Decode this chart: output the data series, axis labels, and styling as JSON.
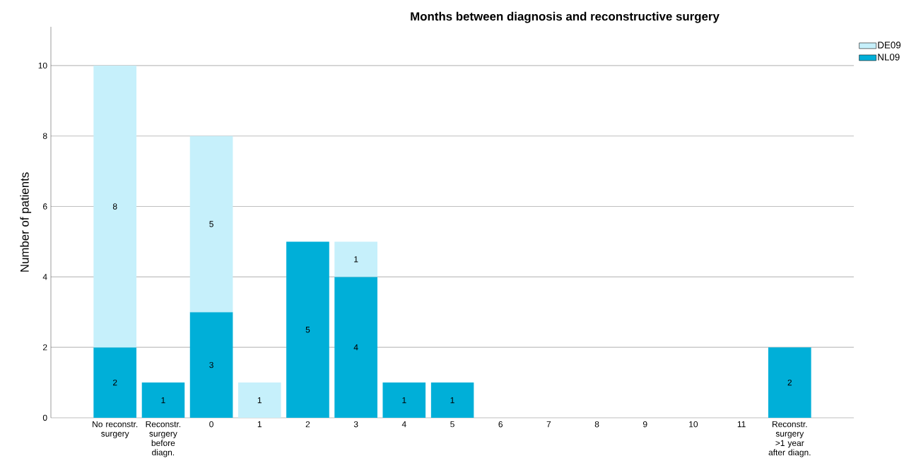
{
  "chart_data": {
    "type": "bar",
    "title": "Months between diagnosis and reconstructive surgery",
    "ylabel": "Number of patients",
    "categories": [
      "No reconstr. surgery",
      "Reconstr. surgery before diagn.",
      "0",
      "1",
      "2",
      "3",
      "4",
      "5",
      "6",
      "7",
      "8",
      "9",
      "10",
      "11",
      "Reconstr. surgery >1 year after diagn."
    ],
    "series": [
      {
        "name": "NL09",
        "color": "#00afd8",
        "values": [
          2,
          1,
          3,
          null,
          5,
          4,
          1,
          1,
          null,
          null,
          null,
          null,
          null,
          null,
          2
        ]
      },
      {
        "name": "DE09",
        "color": "#c6f0fb",
        "values": [
          8,
          null,
          5,
          1,
          null,
          1,
          null,
          null,
          null,
          null,
          null,
          null,
          null,
          null,
          null
        ]
      }
    ],
    "stacked": true,
    "data_labels": true,
    "ylim": [
      0,
      11.1
    ],
    "yticks": [
      0,
      2,
      4,
      6,
      8,
      10
    ],
    "grid": "y",
    "legend": "top right"
  }
}
